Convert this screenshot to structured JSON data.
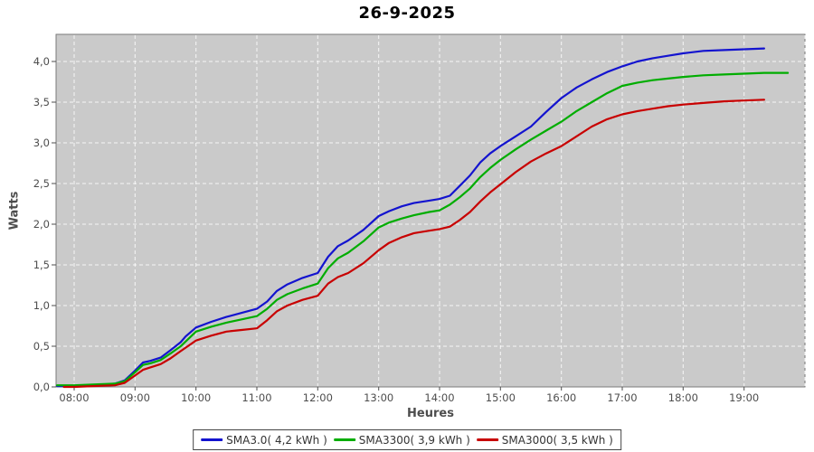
{
  "colors": {
    "background": "#ffffff",
    "plot_bg": "#cacaca",
    "plot_border": "#7a7a7a",
    "grid": "#ffffff",
    "axis_text": "#4d4d4d",
    "title_text": "#000000",
    "legend_border": "#444444",
    "legend_text": "#333333",
    "series_blue": "#1313cf",
    "series_green": "#00ad00",
    "series_red": "#c80000"
  },
  "chart_data": {
    "type": "line",
    "title": "26-9-2025",
    "xlabel": "Heures",
    "ylabel": "Watts",
    "grid": "white dashed, on",
    "legend_position": "bottom-center",
    "x_range": [
      7.703,
      20.0
    ],
    "y_range": [
      0,
      4.3333
    ],
    "x_gridline_hours": [
      8,
      9,
      10,
      11,
      12,
      13,
      14,
      15,
      16,
      17,
      18,
      19,
      20
    ],
    "x_ticks": [
      {
        "t": 8,
        "label": "08:00"
      },
      {
        "t": 9,
        "label": "09:00"
      },
      {
        "t": 10,
        "label": "10:00"
      },
      {
        "t": 11,
        "label": "11:00"
      },
      {
        "t": 12,
        "label": "12:00"
      },
      {
        "t": 13,
        "label": "13:00"
      },
      {
        "t": 14,
        "label": "14:00"
      },
      {
        "t": 15,
        "label": "15:00"
      },
      {
        "t": 16,
        "label": "16:00"
      },
      {
        "t": 17,
        "label": "17:00"
      },
      {
        "t": 18,
        "label": "18:00"
      },
      {
        "t": 19,
        "label": "19:00"
      }
    ],
    "y_ticks": [
      {
        "v": 0.0,
        "label": "0,0"
      },
      {
        "v": 0.5,
        "label": "0,5"
      },
      {
        "v": 1.0,
        "label": "1,0"
      },
      {
        "v": 1.5,
        "label": "1,5"
      },
      {
        "v": 2.0,
        "label": "2,0"
      },
      {
        "v": 2.5,
        "label": "2,5"
      },
      {
        "v": 3.0,
        "label": "3,0"
      },
      {
        "v": 3.5,
        "label": "3,5"
      },
      {
        "v": 4.0,
        "label": "4,0"
      }
    ],
    "series": [
      {
        "name": "SMA3.0",
        "legend_label": "SMA3.0( 4,2 kWh )",
        "total_kwh": "4,2",
        "color": "#1313cf",
        "points": [
          [
            7.72,
            0.01
          ],
          [
            8.0,
            0.01
          ],
          [
            8.25,
            0.02
          ],
          [
            8.5,
            0.03
          ],
          [
            8.67,
            0.04
          ],
          [
            8.83,
            0.08
          ],
          [
            9.0,
            0.2
          ],
          [
            9.13,
            0.3
          ],
          [
            9.25,
            0.32
          ],
          [
            9.42,
            0.36
          ],
          [
            9.58,
            0.45
          ],
          [
            9.75,
            0.55
          ],
          [
            9.83,
            0.62
          ],
          [
            10.0,
            0.73
          ],
          [
            10.25,
            0.8
          ],
          [
            10.5,
            0.86
          ],
          [
            10.75,
            0.91
          ],
          [
            11.0,
            0.96
          ],
          [
            11.17,
            1.05
          ],
          [
            11.33,
            1.18
          ],
          [
            11.5,
            1.26
          ],
          [
            11.75,
            1.34
          ],
          [
            12.0,
            1.4
          ],
          [
            12.17,
            1.6
          ],
          [
            12.33,
            1.73
          ],
          [
            12.5,
            1.8
          ],
          [
            12.75,
            1.93
          ],
          [
            13.0,
            2.1
          ],
          [
            13.17,
            2.16
          ],
          [
            13.38,
            2.22
          ],
          [
            13.58,
            2.26
          ],
          [
            13.83,
            2.29
          ],
          [
            14.0,
            2.31
          ],
          [
            14.17,
            2.35
          ],
          [
            14.33,
            2.47
          ],
          [
            14.5,
            2.6
          ],
          [
            14.67,
            2.76
          ],
          [
            14.83,
            2.87
          ],
          [
            15.0,
            2.96
          ],
          [
            15.25,
            3.08
          ],
          [
            15.5,
            3.2
          ],
          [
            15.75,
            3.38
          ],
          [
            16.0,
            3.55
          ],
          [
            16.25,
            3.68
          ],
          [
            16.5,
            3.78
          ],
          [
            16.75,
            3.87
          ],
          [
            17.0,
            3.94
          ],
          [
            17.25,
            4.0
          ],
          [
            17.5,
            4.04
          ],
          [
            17.75,
            4.07
          ],
          [
            18.0,
            4.1
          ],
          [
            18.33,
            4.13
          ],
          [
            18.67,
            4.14
          ],
          [
            19.0,
            4.15
          ],
          [
            19.33,
            4.16
          ]
        ]
      },
      {
        "name": "SMA3300",
        "legend_label": "SMA3300( 3,9 kWh )",
        "total_kwh": "3,9",
        "color": "#00ad00",
        "points": [
          [
            7.72,
            0.02
          ],
          [
            8.0,
            0.02
          ],
          [
            8.3,
            0.03
          ],
          [
            8.67,
            0.04
          ],
          [
            8.83,
            0.07
          ],
          [
            9.0,
            0.18
          ],
          [
            9.13,
            0.27
          ],
          [
            9.25,
            0.29
          ],
          [
            9.42,
            0.33
          ],
          [
            9.58,
            0.41
          ],
          [
            9.75,
            0.5
          ],
          [
            10.0,
            0.68
          ],
          [
            10.25,
            0.74
          ],
          [
            10.5,
            0.79
          ],
          [
            10.75,
            0.83
          ],
          [
            11.0,
            0.87
          ],
          [
            11.17,
            0.96
          ],
          [
            11.33,
            1.07
          ],
          [
            11.5,
            1.14
          ],
          [
            11.75,
            1.21
          ],
          [
            12.0,
            1.27
          ],
          [
            12.17,
            1.46
          ],
          [
            12.33,
            1.58
          ],
          [
            12.5,
            1.65
          ],
          [
            12.75,
            1.79
          ],
          [
            13.0,
            1.96
          ],
          [
            13.17,
            2.02
          ],
          [
            13.38,
            2.07
          ],
          [
            13.58,
            2.11
          ],
          [
            13.83,
            2.15
          ],
          [
            14.0,
            2.17
          ],
          [
            14.17,
            2.24
          ],
          [
            14.33,
            2.33
          ],
          [
            14.5,
            2.44
          ],
          [
            14.67,
            2.58
          ],
          [
            14.83,
            2.69
          ],
          [
            15.0,
            2.79
          ],
          [
            15.25,
            2.92
          ],
          [
            15.5,
            3.04
          ],
          [
            15.75,
            3.15
          ],
          [
            16.0,
            3.26
          ],
          [
            16.25,
            3.39
          ],
          [
            16.5,
            3.5
          ],
          [
            16.75,
            3.61
          ],
          [
            17.0,
            3.7
          ],
          [
            17.25,
            3.74
          ],
          [
            17.5,
            3.77
          ],
          [
            17.75,
            3.79
          ],
          [
            18.0,
            3.81
          ],
          [
            18.33,
            3.83
          ],
          [
            18.67,
            3.84
          ],
          [
            19.0,
            3.85
          ],
          [
            19.33,
            3.86
          ],
          [
            19.72,
            3.86
          ]
        ]
      },
      {
        "name": "SMA3000",
        "legend_label": "SMA3000( 3,5 kWh )",
        "total_kwh": "3,5",
        "color": "#c80000",
        "points": [
          [
            7.83,
            0.0
          ],
          [
            8.0,
            0.0
          ],
          [
            8.3,
            0.01
          ],
          [
            8.67,
            0.02
          ],
          [
            8.83,
            0.05
          ],
          [
            9.0,
            0.14
          ],
          [
            9.13,
            0.21
          ],
          [
            9.25,
            0.24
          ],
          [
            9.42,
            0.28
          ],
          [
            9.58,
            0.35
          ],
          [
            9.75,
            0.44
          ],
          [
            10.0,
            0.57
          ],
          [
            10.25,
            0.63
          ],
          [
            10.5,
            0.68
          ],
          [
            10.75,
            0.7
          ],
          [
            11.0,
            0.72
          ],
          [
            11.17,
            0.82
          ],
          [
            11.33,
            0.93
          ],
          [
            11.5,
            1.0
          ],
          [
            11.75,
            1.07
          ],
          [
            12.0,
            1.12
          ],
          [
            12.17,
            1.27
          ],
          [
            12.33,
            1.35
          ],
          [
            12.5,
            1.4
          ],
          [
            12.75,
            1.52
          ],
          [
            13.0,
            1.68
          ],
          [
            13.17,
            1.77
          ],
          [
            13.38,
            1.84
          ],
          [
            13.58,
            1.89
          ],
          [
            13.83,
            1.92
          ],
          [
            14.0,
            1.94
          ],
          [
            14.17,
            1.97
          ],
          [
            14.33,
            2.05
          ],
          [
            14.5,
            2.15
          ],
          [
            14.67,
            2.28
          ],
          [
            14.83,
            2.39
          ],
          [
            15.0,
            2.49
          ],
          [
            15.25,
            2.64
          ],
          [
            15.5,
            2.77
          ],
          [
            15.75,
            2.87
          ],
          [
            16.0,
            2.96
          ],
          [
            16.25,
            3.08
          ],
          [
            16.5,
            3.2
          ],
          [
            16.75,
            3.29
          ],
          [
            17.0,
            3.35
          ],
          [
            17.25,
            3.39
          ],
          [
            17.5,
            3.42
          ],
          [
            17.75,
            3.45
          ],
          [
            18.0,
            3.47
          ],
          [
            18.33,
            3.49
          ],
          [
            18.67,
            3.51
          ],
          [
            19.0,
            3.52
          ],
          [
            19.33,
            3.53
          ]
        ]
      }
    ]
  }
}
